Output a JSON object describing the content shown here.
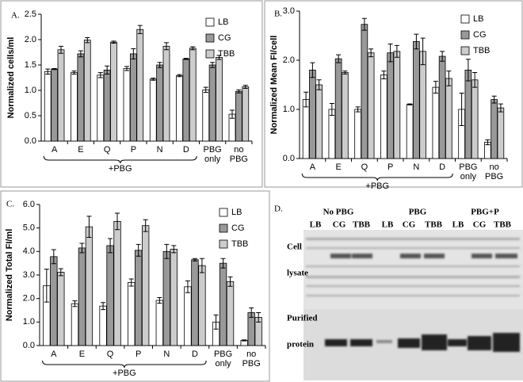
{
  "chart_data": [
    {
      "type": "bar",
      "panel_label": "A.",
      "ylabel": "Normalized cells/ml",
      "categories": [
        "A",
        "E",
        "Q",
        "P",
        "N",
        "D",
        "PBG only",
        "no PBG"
      ],
      "annotation": "+PBG",
      "series": [
        {
          "name": "LB",
          "color": "#ffffff",
          "values": [
            1.37,
            1.35,
            1.3,
            1.43,
            1.22,
            1.29,
            1.01,
            0.53
          ],
          "errors": [
            0.05,
            0.03,
            0.05,
            0.04,
            0.02,
            0.02,
            0.05,
            0.08
          ]
        },
        {
          "name": "CG",
          "color": "#999999",
          "values": [
            1.42,
            1.72,
            1.4,
            1.72,
            1.5,
            1.62,
            1.5,
            0.98
          ],
          "errors": [
            0.01,
            0.06,
            0.08,
            0.1,
            0.05,
            0.01,
            0.05,
            0.03
          ]
        },
        {
          "name": "TBB",
          "color": "#cccccc",
          "values": [
            1.8,
            1.99,
            1.95,
            2.2,
            1.87,
            1.83,
            1.65,
            1.07
          ],
          "errors": [
            0.07,
            0.05,
            0.02,
            0.08,
            0.07,
            0.03,
            0.04,
            0.03
          ]
        }
      ],
      "ylim": [
        0,
        2.5
      ],
      "yticks": [
        {
          "value": 0,
          "label": "0.0"
        },
        0.5,
        {
          "value": 1,
          "label": "1.0"
        },
        1.5,
        {
          "value": 2,
          "label": "2.0"
        },
        2.5
      ],
      "legend": "upper right"
    },
    {
      "type": "bar",
      "panel_label": "B.",
      "ylabel": "Normalized Mean FI/cell",
      "categories": [
        "A",
        "E",
        "Q",
        "P",
        "N",
        "D",
        "PBG only",
        "no PBG"
      ],
      "annotation": "+PBG",
      "series": [
        {
          "name": "LB",
          "color": "#ffffff",
          "values": [
            1.2,
            1.0,
            1.0,
            1.7,
            1.1,
            1.45,
            1.0,
            0.33
          ],
          "errors": [
            0.15,
            0.12,
            0.05,
            0.08,
            0.01,
            0.12,
            0.33,
            0.05
          ]
        },
        {
          "name": "CG",
          "color": "#999999",
          "values": [
            1.8,
            2.03,
            2.73,
            2.15,
            2.38,
            2.08,
            1.8,
            1.2
          ],
          "errors": [
            0.15,
            0.08,
            0.12,
            0.18,
            0.15,
            0.1,
            0.22,
            0.07
          ]
        },
        {
          "name": "TBB",
          "color": "#cccccc",
          "values": [
            1.5,
            1.75,
            2.15,
            2.18,
            2.18,
            1.63,
            1.6,
            1.03
          ],
          "errors": [
            0.1,
            0.03,
            0.08,
            0.12,
            0.27,
            0.15,
            0.15,
            0.08
          ]
        }
      ],
      "ylim": [
        0,
        3
      ],
      "yticks": [
        {
          "value": 0,
          "label": "0.0"
        },
        {
          "value": 1,
          "label": "1.0"
        },
        {
          "value": 2,
          "label": "2.0"
        },
        {
          "value": 3,
          "label": "3.0"
        }
      ],
      "legend": "upper right"
    },
    {
      "type": "bar",
      "panel_label": "C.",
      "ylabel": "Normalized Total FI/ml",
      "categories": [
        "A",
        "E",
        "Q",
        "P",
        "N",
        "D",
        "PBG only",
        "no PBG"
      ],
      "annotation": "+PBG",
      "series": [
        {
          "name": "LB",
          "color": "#ffffff",
          "values": [
            2.55,
            1.78,
            1.68,
            2.68,
            1.92,
            2.5,
            1.0,
            0.22
          ],
          "errors": [
            0.7,
            0.12,
            0.15,
            0.15,
            0.12,
            0.25,
            0.3,
            0.02
          ]
        },
        {
          "name": "CG",
          "color": "#999999",
          "values": [
            3.78,
            4.15,
            4.25,
            4.05,
            4.0,
            3.65,
            3.5,
            1.4
          ],
          "errors": [
            0.3,
            0.2,
            0.3,
            0.25,
            0.3,
            0.05,
            0.2,
            0.2
          ]
        },
        {
          "name": "TBB",
          "color": "#cccccc",
          "values": [
            3.12,
            5.05,
            5.28,
            5.1,
            4.1,
            3.4,
            2.72,
            1.2
          ],
          "errors": [
            0.15,
            0.45,
            0.35,
            0.25,
            0.15,
            0.3,
            0.2,
            0.2
          ]
        }
      ],
      "ylim": [
        0,
        6
      ],
      "yticks": [
        {
          "value": 0,
          "label": "0.0"
        },
        {
          "value": 1,
          "label": "1.0"
        },
        {
          "value": 2,
          "label": "2.0"
        },
        {
          "value": 3,
          "label": "3.0"
        },
        {
          "value": 4,
          "label": "4.0"
        },
        {
          "value": 5,
          "label": "5.0"
        },
        {
          "value": 6,
          "label": "6.0"
        }
      ],
      "legend": "upper right"
    }
  ],
  "gel": {
    "panel_label": "D.",
    "groups": [
      "No PBG",
      "PBG",
      "PBG+P"
    ],
    "lanes": [
      "LB",
      "CG",
      "TBB",
      "LB",
      "CG",
      "TBB",
      "LB",
      "CG",
      "TBB"
    ],
    "row_labels": [
      "Cell",
      "lysate",
      "Purified",
      "protein"
    ]
  }
}
